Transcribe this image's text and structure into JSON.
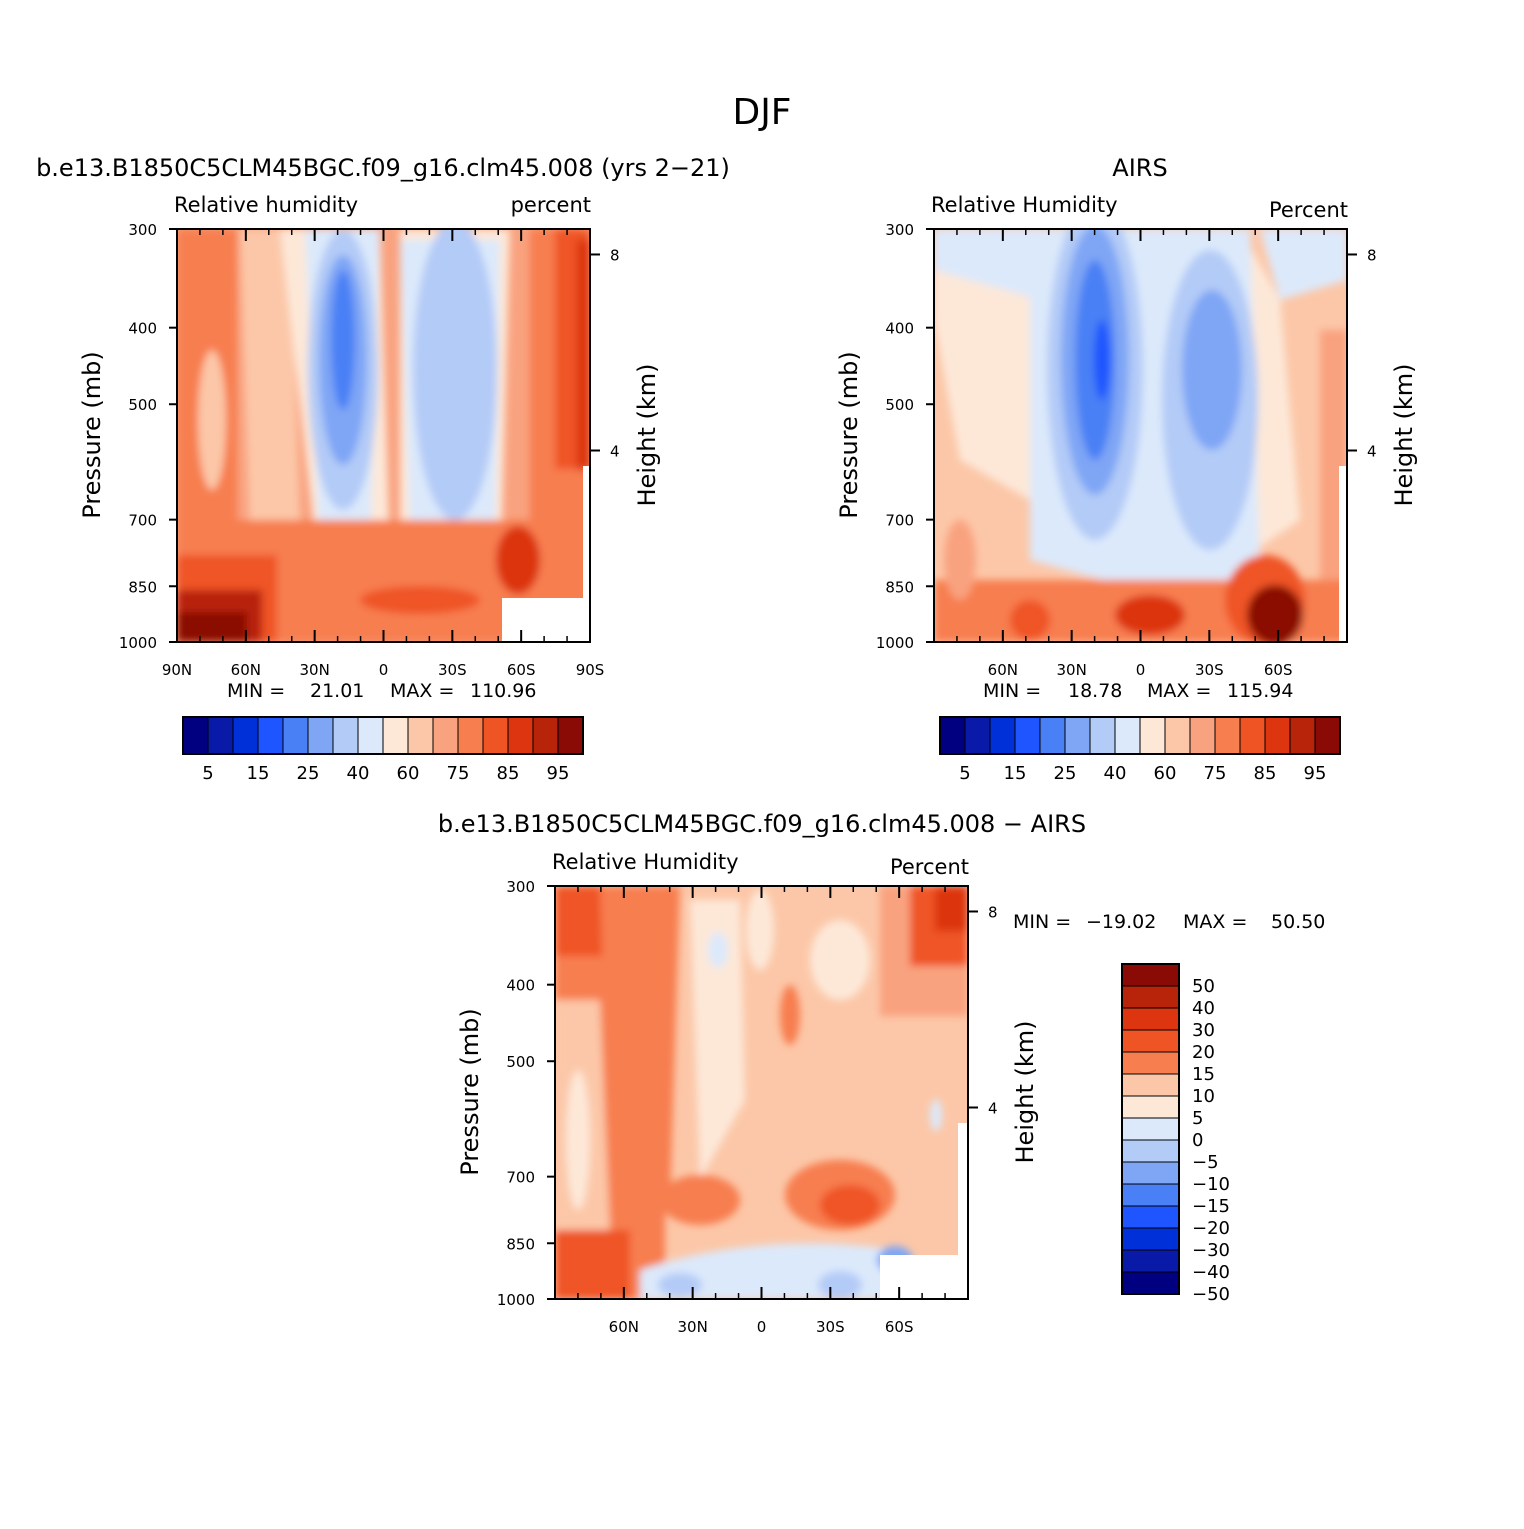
{
  "page_title": "DJF",
  "palette": {
    "full": [
      "#000080",
      "#0a1aa8",
      "#0030d8",
      "#1f55ff",
      "#4a80f5",
      "#7fa6f5",
      "#b3cbf7",
      "#dce9fb",
      "#fde8d8",
      "#fcc7a8",
      "#f9a27f",
      "#f77e4f",
      "#ef5425",
      "#dc3510",
      "#b8240a",
      "#8a0b06"
    ],
    "diff": [
      "#8a0b06",
      "#b8240a",
      "#dc3510",
      "#ef5425",
      "#f77e4f",
      "#fcc7a8",
      "#fde8d8",
      "#dce9fb",
      "#b3cbf7",
      "#7fa6f5",
      "#4a80f5",
      "#1f55ff",
      "#0030d8",
      "#0a1aa8",
      "#000080"
    ]
  },
  "panels": {
    "model": {
      "title": "b.e13.B1850C5CLM45BGC.f09_g16.clm45.008 (yrs 2−21)",
      "left_label": "Relative humidity",
      "right_label": "percent",
      "ylabel": "Pressure (mb)",
      "y2label": "Height (km)",
      "ytick_labels": [
        "300",
        "400",
        "500",
        "700",
        "850",
        "1000"
      ],
      "y2tick_labels": [
        "8",
        "4"
      ],
      "xtick_labels": [
        "90N",
        "60N",
        "30N",
        "0",
        "30S",
        "60S",
        "90S"
      ],
      "min_label": "MIN =",
      "min_value": "21.01",
      "max_label": "MAX =",
      "max_value": "110.96",
      "colorbar_labels": [
        "5",
        "15",
        "25",
        "40",
        "60",
        "75",
        "85",
        "95"
      ]
    },
    "obs": {
      "title": "AIRS",
      "left_label": "Relative Humidity",
      "right_label": "Percent",
      "ylabel": "Pressure (mb)",
      "y2label": "Height (km)",
      "ytick_labels": [
        "300",
        "400",
        "500",
        "700",
        "850",
        "1000"
      ],
      "y2tick_labels": [
        "8",
        "4"
      ],
      "xtick_labels": [
        "60N",
        "30N",
        "0",
        "30S",
        "60S"
      ],
      "min_label": "MIN =",
      "min_value": "18.78",
      "max_label": "MAX =",
      "max_value": "115.94",
      "colorbar_labels": [
        "5",
        "15",
        "25",
        "40",
        "60",
        "75",
        "85",
        "95"
      ]
    },
    "diff": {
      "title": "b.e13.B1850C5CLM45BGC.f09_g16.clm45.008 − AIRS",
      "left_label": "Relative Humidity",
      "right_label": "Percent",
      "ylabel": "Pressure (mb)",
      "y2label": "Height (km)",
      "ytick_labels": [
        "300",
        "400",
        "500",
        "700",
        "850",
        "1000"
      ],
      "y2tick_labels": [
        "8",
        "4"
      ],
      "xtick_labels": [
        "60N",
        "30N",
        "0",
        "30S",
        "60S"
      ],
      "min_label": "MIN =",
      "min_value": "−19.02",
      "max_label": "MAX =",
      "max_value": "50.50",
      "colorbar_labels": [
        "50",
        "40",
        "30",
        "20",
        "15",
        "10",
        "5",
        "0",
        "−5",
        "−10",
        "−15",
        "−20",
        "−30",
        "−40",
        "−50"
      ]
    }
  },
  "chart_data": [
    {
      "type": "heatmap",
      "title": "b.e13.B1850C5CLM45BGC.f09_g16.clm45.008 (yrs 2−21)",
      "variable": "Relative humidity",
      "units": "percent",
      "xlabel": "",
      "ylabel": "Pressure (mb)",
      "y2label": "Height (km)",
      "x_ticks": [
        "90N",
        "60N",
        "30N",
        "0",
        "30S",
        "60S",
        "90S"
      ],
      "xlim": [
        90,
        -90
      ],
      "y_ticks_mb": [
        300,
        400,
        500,
        700,
        850,
        1000
      ],
      "ylim_mb": [
        300,
        1000
      ],
      "y2_ticks_km": [
        8,
        4
      ],
      "min": 21.01,
      "max": 110.96,
      "contour_levels": [
        5,
        10,
        15,
        20,
        25,
        30,
        40,
        50,
        60,
        65,
        75,
        80,
        85,
        90,
        95
      ],
      "colorbar_labels": [
        5,
        15,
        25,
        40,
        60,
        75,
        85,
        95
      ],
      "features": [
        {
          "region": "NH subtropics 30N-15N, 400-700 mb",
          "value_range": [
            25,
            40
          ]
        },
        {
          "region": "SH subtropics 15S-40S, 350-750 mb",
          "value_range": [
            40,
            50
          ]
        },
        {
          "region": "Equatorial column",
          "value_range": [
            60,
            75
          ]
        },
        {
          "region": "High latitudes poleward of 60, all levels",
          "value_range": [
            75,
            95
          ]
        },
        {
          "region": "Surface 90N-60N near 1000 mb",
          "value_range": [
            95,
            111
          ]
        }
      ]
    },
    {
      "type": "heatmap",
      "title": "AIRS",
      "variable": "Relative Humidity",
      "units": "Percent",
      "ylabel": "Pressure (mb)",
      "y2label": "Height (km)",
      "x_ticks": [
        "60N",
        "30N",
        "0",
        "30S",
        "60S"
      ],
      "xlim": [
        90,
        -90
      ],
      "y_ticks_mb": [
        300,
        400,
        500,
        700,
        850,
        1000
      ],
      "ylim_mb": [
        300,
        1000
      ],
      "y2_ticks_km": [
        8,
        4
      ],
      "min": 18.78,
      "max": 115.94,
      "contour_levels": [
        5,
        10,
        15,
        20,
        25,
        30,
        40,
        50,
        60,
        65,
        75,
        80,
        85,
        90,
        95
      ],
      "colorbar_labels": [
        5,
        15,
        25,
        40,
        60,
        75,
        85,
        95
      ],
      "features": [
        {
          "region": "NH subtropics 35N-15N, 400-700 mb",
          "value_range": [
            20,
            30
          ]
        },
        {
          "region": "SH subtropics 15S-45S, 400-750 mb",
          "value_range": [
            30,
            40
          ]
        },
        {
          "region": "Upper troposphere NH high latitudes",
          "value_range": [
            50,
            60
          ]
        },
        {
          "region": "Boundary layer 60S-70S near 950 mb",
          "value_range": [
            95,
            116
          ]
        }
      ]
    },
    {
      "type": "heatmap",
      "title": "b.e13.B1850C5CLM45BGC.f09_g16.clm45.008 − AIRS",
      "variable": "Relative Humidity",
      "units": "Percent",
      "ylabel": "Pressure (mb)",
      "y2label": "Height (km)",
      "x_ticks": [
        "60N",
        "30N",
        "0",
        "30S",
        "60S"
      ],
      "xlim": [
        90,
        -90
      ],
      "y_ticks_mb": [
        300,
        400,
        500,
        700,
        850,
        1000
      ],
      "ylim_mb": [
        300,
        1000
      ],
      "y2_ticks_km": [
        8,
        4
      ],
      "min": -19.02,
      "max": 50.5,
      "contour_levels": [
        -50,
        -40,
        -30,
        -20,
        -15,
        -10,
        -5,
        0,
        5,
        10,
        15,
        20,
        30,
        40,
        50
      ],
      "colorbar_labels": [
        50,
        40,
        30,
        20,
        15,
        10,
        5,
        0,
        -5,
        -10,
        -15,
        -20,
        -30,
        -40,
        -50
      ],
      "features": [
        {
          "region": "Upper levels 90N-60N and 60S-90S",
          "value_range": [
            20,
            40
          ]
        },
        {
          "region": "NH midlatitudes 60N-40N, mid troposphere",
          "value_range": [
            15,
            20
          ]
        },
        {
          "region": "Tropical mid troposphere",
          "value_range": [
            0,
            10
          ]
        },
        {
          "region": "SH subtropics near 850 mb",
          "value_range": [
            20,
            30
          ]
        },
        {
          "region": "Tropical boundary layer near 950 mb",
          "value_range": [
            -15,
            0
          ]
        }
      ]
    }
  ]
}
